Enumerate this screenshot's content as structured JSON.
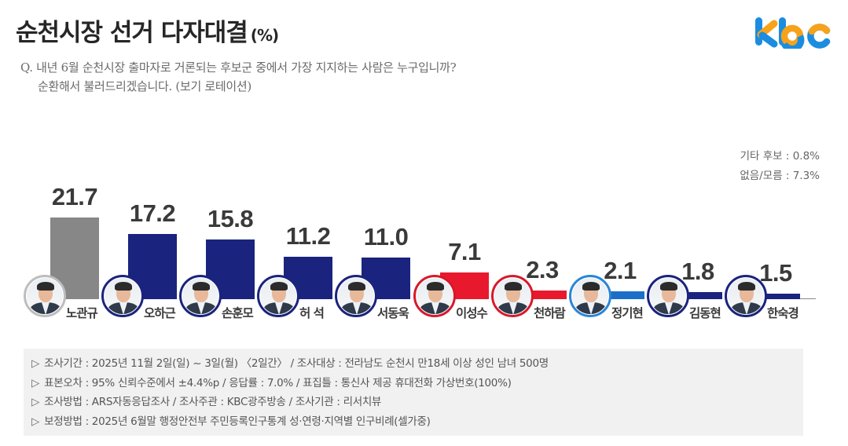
{
  "header": {
    "title": "순천시장 선거 다자대결",
    "unit": "(%)",
    "logo_text": "kbc"
  },
  "question": {
    "line1": "Q. 내년 6월 순천시장 출마자로 거론되는 후보군 중에서 가장 지지하는 사람은 누구입니까?",
    "line2": "순환해서 불러드리겠습니다. (보기 로테이션)"
  },
  "others": {
    "etc": "기타 후보 : 0.8%",
    "none": "없음/모름 : 7.3%"
  },
  "colors": {
    "gray": "#878787",
    "navy": "#1a237e",
    "red": "#e8192c",
    "blue": "#1c6fc9",
    "title": "#262626",
    "notes_bg": "#f1f1f1",
    "logo_blue": "#1a8de0",
    "logo_orange": "#f6a21a"
  },
  "chart_data": {
    "type": "bar",
    "title": "순천시장 선거 다자대결 (%)",
    "xlabel": "",
    "ylabel": "%",
    "ylim": [
      0,
      25
    ],
    "grid": false,
    "legend": "none",
    "categories": [
      "노관규",
      "오하근",
      "손훈모",
      "허석",
      "서동욱",
      "이성수",
      "천하람",
      "정기현",
      "김동현",
      "한숙경"
    ],
    "values": [
      21.7,
      17.2,
      15.8,
      11.2,
      11.0,
      7.1,
      2.3,
      2.1,
      1.8,
      1.5
    ],
    "bar_colors": [
      "#878787",
      "#1a237e",
      "#1a237e",
      "#1a237e",
      "#1a237e",
      "#e8192c",
      "#e8192c",
      "#1c6fc9",
      "#1a237e",
      "#1a237e"
    ],
    "annotations": [
      "기타 후보 : 0.8%",
      "없음/모름 : 7.3%"
    ]
  },
  "candidates": [
    {
      "name": "노관규",
      "value": "21.7",
      "color": "#878787",
      "ring": "#bdbdbd"
    },
    {
      "name": "오하근",
      "value": "17.2",
      "color": "#1a237e",
      "ring": "#1a237e"
    },
    {
      "name": "손훈모",
      "value": "15.8",
      "color": "#1a237e",
      "ring": "#1a237e"
    },
    {
      "name": "허 석",
      "value": "11.2",
      "color": "#1a237e",
      "ring": "#1a237e"
    },
    {
      "name": "서동욱",
      "value": "11.0",
      "color": "#1a237e",
      "ring": "#1a237e"
    },
    {
      "name": "이성수",
      "value": "7.1",
      "color": "#e8192c",
      "ring": "#d7192a"
    },
    {
      "name": "천하람",
      "value": "2.3",
      "color": "#e8192c",
      "ring": "#d7192a"
    },
    {
      "name": "정기현",
      "value": "2.1",
      "color": "#1c6fc9",
      "ring": "#2a86d6"
    },
    {
      "name": "김동현",
      "value": "1.8",
      "color": "#1a237e",
      "ring": "#1a237e"
    },
    {
      "name": "한숙경",
      "value": "1.5",
      "color": "#1a237e",
      "ring": "#1a237e"
    }
  ],
  "notes": [
    "조사기간 : 2025년 11월 2일(일) ~ 3일(월) 〈2일간〉 / 조사대상 : 전라남도 순천시 만18세 이상 성인 남녀 500명",
    "표본오차 : 95% 신뢰수준에서 ±4.4%p / 응답률 : 7.0% / 표집틀 : 통신사 제공 휴대전화 가상번호(100%)",
    "조사방법 : ARS자동응답조사 / 조사주관 : KBC광주방송 / 조사기관 : 리서치뷰",
    "보정방법 : 2025년 6월말 행정안전부 주민등록인구통계 성·연령·지역별 인구비례(셀가중)"
  ],
  "notes_bullet": "▷"
}
